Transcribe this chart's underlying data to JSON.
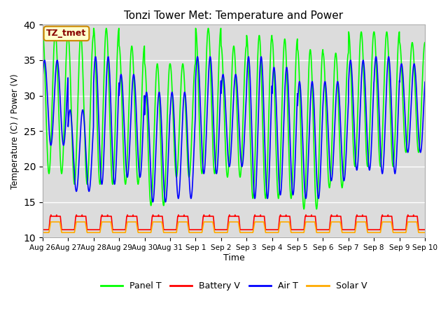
{
  "title": "Tonzi Tower Met: Temperature and Power",
  "xlabel": "Time",
  "ylabel": "Temperature (C) / Power (V)",
  "ylim": [
    10,
    40
  ],
  "yticks": [
    10,
    15,
    20,
    25,
    30,
    35,
    40
  ],
  "bg_color": "#dcdcdc",
  "fig_color": "#ffffff",
  "annotation_text": "TZ_tmet",
  "annotation_bg": "#ffffcc",
  "annotation_border": "#cc8800",
  "annotation_fg": "#880000",
  "colors": {
    "panel_t": "#00ff00",
    "battery_v": "#ff0000",
    "air_t": "#0000ff",
    "solar_v": "#ffaa00"
  },
  "legend_labels": [
    "Panel T",
    "Battery V",
    "Air T",
    "Solar V"
  ],
  "x_tick_labels": [
    "Aug 26",
    "Aug 27",
    "Aug 28",
    "Aug 29",
    "Aug 30",
    "Aug 31",
    "Sep 1",
    "Sep 2",
    "Sep 3",
    "Sep 4",
    "Sep 5",
    "Sep 6",
    "Sep 7",
    "Sep 8",
    "Sep 9",
    "Sep 10"
  ],
  "n_days": 15,
  "pts_per_day": 144,
  "panel_peaks": [
    39,
    38.5,
    39.5,
    37,
    34.5,
    34.5,
    39.5,
    37,
    38.5,
    38,
    36.5,
    36,
    39,
    39,
    37.5
  ],
  "panel_troughs": [
    19,
    17.5,
    17.5,
    17.5,
    14.5,
    18.5,
    19,
    18.5,
    15.5,
    15.5,
    14,
    17,
    20,
    20,
    22
  ],
  "air_peaks": [
    35,
    28,
    35.5,
    33,
    30.5,
    30.5,
    35.5,
    33,
    35.5,
    34,
    32,
    32,
    35,
    35.5,
    34.5
  ],
  "air_troughs": [
    23,
    16.5,
    17.5,
    18.5,
    15,
    15.5,
    19,
    20,
    15.5,
    16,
    15.5,
    18,
    19.5,
    19,
    22
  ],
  "battery_base": 11.1,
  "battery_peak": 13.0,
  "solar_base": 10.7,
  "solar_peak": 12.2,
  "linewidth": 1.2
}
